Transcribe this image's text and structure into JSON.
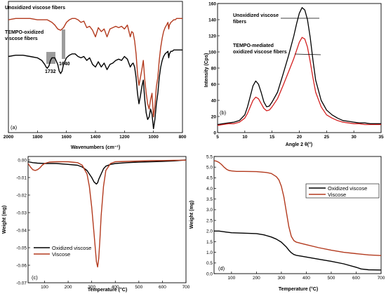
{
  "chart_data": [
    {
      "type": "line",
      "panel": "(a)",
      "xlabel": "Wavenumbers (cm⁻¹)",
      "ylabel": "",
      "xlim": [
        2000,
        800
      ],
      "xticks": [
        2000,
        1800,
        1600,
        1400,
        1200,
        1000,
        800
      ],
      "annotations": [
        "1732",
        "1640"
      ],
      "series": [
        {
          "name": "Unoxidized viscose fibers",
          "color": "#b33a1e",
          "x": [
            2000,
            1950,
            1900,
            1850,
            1800,
            1770,
            1750,
            1732,
            1715,
            1700,
            1680,
            1660,
            1640,
            1620,
            1600,
            1580,
            1560,
            1540,
            1520,
            1500,
            1480,
            1460,
            1440,
            1420,
            1400,
            1380,
            1360,
            1340,
            1320,
            1300,
            1280,
            1260,
            1240,
            1220,
            1200,
            1180,
            1160,
            1150,
            1140,
            1130,
            1120,
            1110,
            1100,
            1090,
            1080,
            1070,
            1060,
            1050,
            1040,
            1030,
            1020,
            1010,
            1000,
            990,
            980,
            970,
            960,
            950,
            940,
            930,
            920,
            910,
            900,
            895,
            890,
            880,
            870,
            860,
            850,
            840,
            820,
            800
          ],
          "y": [
            0.86,
            0.87,
            0.87,
            0.87,
            0.86,
            0.86,
            0.86,
            0.86,
            0.85,
            0.84,
            0.82,
            0.79,
            0.78,
            0.8,
            0.84,
            0.86,
            0.87,
            0.87,
            0.86,
            0.84,
            0.85,
            0.8,
            0.81,
            0.78,
            0.73,
            0.8,
            0.77,
            0.79,
            0.73,
            0.79,
            0.8,
            0.81,
            0.8,
            0.81,
            0.79,
            0.82,
            0.73,
            0.77,
            0.76,
            0.7,
            0.6,
            0.45,
            0.36,
            0.42,
            0.48,
            0.55,
            0.4,
            0.3,
            0.22,
            0.18,
            0.25,
            0.3,
            0.12,
            0.2,
            0.35,
            0.42,
            0.55,
            0.65,
            0.72,
            0.77,
            0.8,
            0.82,
            0.84,
            0.79,
            0.82,
            0.84,
            0.85,
            0.86,
            0.86,
            0.87,
            0.87,
            0.87
          ]
        },
        {
          "name": "TEMPO-oxidized viscose fibers",
          "color": "#000000",
          "x": [
            2000,
            1950,
            1900,
            1850,
            1800,
            1770,
            1750,
            1740,
            1732,
            1720,
            1710,
            1700,
            1680,
            1660,
            1650,
            1640,
            1630,
            1620,
            1600,
            1580,
            1560,
            1540,
            1520,
            1500,
            1480,
            1460,
            1440,
            1420,
            1400,
            1380,
            1360,
            1340,
            1320,
            1300,
            1280,
            1260,
            1240,
            1220,
            1200,
            1180,
            1160,
            1150,
            1140,
            1130,
            1120,
            1110,
            1100,
            1090,
            1080,
            1070,
            1060,
            1050,
            1040,
            1030,
            1020,
            1010,
            1000,
            990,
            980,
            970,
            960,
            950,
            940,
            930,
            920,
            910,
            900,
            895,
            890,
            880,
            870,
            860,
            850,
            840,
            820,
            800
          ],
          "y": [
            0.58,
            0.59,
            0.59,
            0.58,
            0.57,
            0.55,
            0.52,
            0.5,
            0.49,
            0.51,
            0.55,
            0.57,
            0.57,
            0.52,
            0.47,
            0.45,
            0.47,
            0.52,
            0.57,
            0.59,
            0.6,
            0.6,
            0.58,
            0.57,
            0.58,
            0.55,
            0.57,
            0.52,
            0.5,
            0.54,
            0.5,
            0.53,
            0.48,
            0.52,
            0.53,
            0.55,
            0.56,
            0.55,
            0.58,
            0.56,
            0.5,
            0.52,
            0.53,
            0.5,
            0.42,
            0.3,
            0.22,
            0.28,
            0.35,
            0.4,
            0.25,
            0.15,
            0.1,
            0.12,
            0.18,
            0.14,
            0.03,
            0.1,
            0.22,
            0.3,
            0.42,
            0.5,
            0.55,
            0.58,
            0.6,
            0.61,
            0.62,
            0.57,
            0.6,
            0.62,
            0.62,
            0.63,
            0.63,
            0.63,
            0.63,
            0.63
          ]
        }
      ]
    },
    {
      "type": "line",
      "panel": "(b)",
      "xlabel": "Angle 2 θ(°)",
      "ylabel": "Intensity (Cps)",
      "xlim": [
        5,
        35
      ],
      "ylim": [
        0,
        160
      ],
      "xticks": [
        5,
        10,
        15,
        20,
        25,
        30,
        35
      ],
      "yticks": [
        0,
        20,
        40,
        60,
        80,
        100,
        120,
        140,
        160
      ],
      "series": [
        {
          "name": "Unoxidized viscose fibers",
          "color": "#000000",
          "x": [
            5,
            6,
            7,
            8,
            9,
            10,
            10.5,
            11,
            11.5,
            12,
            12.5,
            13,
            13.5,
            14,
            14.5,
            15,
            16,
            17,
            18,
            19,
            19.5,
            20,
            20.5,
            21,
            21.5,
            22,
            22.5,
            23,
            24,
            25,
            26,
            27,
            28,
            29,
            30,
            31,
            32,
            33,
            34,
            35
          ],
          "y": [
            10,
            11,
            12,
            13,
            15,
            22,
            32,
            45,
            58,
            64,
            60,
            50,
            38,
            32,
            33,
            38,
            50,
            72,
            95,
            120,
            135,
            148,
            155,
            152,
            140,
            118,
            90,
            65,
            40,
            28,
            22,
            18,
            15,
            14,
            13,
            12,
            12,
            11,
            11,
            11
          ]
        },
        {
          "name": "TEMPO-mediated oxidized viscose fibers",
          "color": "#d42020",
          "x": [
            5,
            6,
            7,
            8,
            9,
            10,
            10.5,
            11,
            11.5,
            12,
            12.5,
            13,
            13.5,
            14,
            14.5,
            15,
            16,
            17,
            18,
            19,
            19.5,
            20,
            20.5,
            21,
            21.5,
            22,
            22.5,
            23,
            24,
            25,
            26,
            27,
            28,
            29,
            30,
            31,
            32,
            33,
            34,
            35
          ],
          "y": [
            9,
            10,
            11,
            11,
            13,
            18,
            24,
            32,
            40,
            44,
            42,
            36,
            30,
            27,
            28,
            32,
            42,
            58,
            75,
            92,
            102,
            112,
            118,
            116,
            106,
            88,
            68,
            50,
            32,
            22,
            18,
            15,
            13,
            12,
            11,
            11,
            10,
            10,
            10,
            10
          ]
        }
      ]
    },
    {
      "type": "line",
      "panel": "(c)",
      "xlabel": "Temperature (°C)",
      "ylabel": "Weight (mg)",
      "xlim": [
        30,
        700
      ],
      "ylim": [
        -0.07,
        0.002
      ],
      "xticks": [
        100,
        200,
        300,
        400,
        500,
        600,
        700
      ],
      "yticks": [
        0,
        -0.01,
        -0.02,
        -0.03,
        -0.04,
        -0.05,
        -0.06,
        -0.07
      ],
      "ytick_labels": [
        "0.00",
        "-0.01",
        "-0.02",
        "-0.03",
        "-0.04",
        "-0.05",
        "-0.06",
        "-0.07"
      ],
      "legend": "bottom-left",
      "series": [
        {
          "name": "Oxidized viscose",
          "color": "#000000",
          "x": [
            30,
            50,
            70,
            100,
            150,
            200,
            240,
            260,
            280,
            290,
            300,
            310,
            320,
            325,
            330,
            340,
            350,
            360,
            380,
            400,
            450,
            500,
            550,
            600,
            650,
            700
          ],
          "y": [
            -0.001,
            -0.0015,
            -0.0018,
            -0.002,
            -0.002,
            -0.0025,
            -0.003,
            -0.004,
            -0.006,
            -0.008,
            -0.01,
            -0.0125,
            -0.0137,
            -0.013,
            -0.011,
            -0.008,
            -0.005,
            -0.0035,
            -0.0025,
            -0.002,
            -0.0015,
            -0.0012,
            -0.001,
            -0.0008,
            -0.0005,
            0
          ]
        },
        {
          "name": "Viscose",
          "color": "#b33a1e",
          "x": [
            30,
            40,
            50,
            60,
            70,
            80,
            90,
            100,
            120,
            150,
            200,
            240,
            260,
            280,
            290,
            300,
            310,
            315,
            320,
            325,
            330,
            335,
            340,
            350,
            360,
            380,
            400,
            450,
            500,
            550,
            600,
            650,
            700
          ],
          "y": [
            -0.002,
            -0.004,
            -0.0055,
            -0.006,
            -0.0055,
            -0.0045,
            -0.003,
            -0.002,
            -0.0012,
            -0.001,
            -0.001,
            -0.0015,
            -0.003,
            -0.008,
            -0.015,
            -0.027,
            -0.042,
            -0.05,
            -0.058,
            -0.061,
            -0.056,
            -0.045,
            -0.032,
            -0.015,
            -0.006,
            -0.002,
            -0.001,
            -0.0008,
            -0.0006,
            -0.0004,
            -0.0003,
            -0.0002,
            -0.0001
          ]
        }
      ]
    },
    {
      "type": "line",
      "panel": "(d)",
      "xlabel": "Temperature (°C)",
      "ylabel": "Weight (mg)",
      "xlim": [
        30,
        700
      ],
      "ylim": [
        0,
        5.5
      ],
      "xticks": [
        100,
        200,
        300,
        400,
        500,
        600,
        700
      ],
      "yticks": [
        0,
        0.5,
        1.0,
        1.5,
        2.0,
        2.5,
        3.0,
        3.5,
        4.0,
        4.5,
        5.0,
        5.5
      ],
      "ytick_labels": [
        "0.0",
        "0.5",
        "1.0",
        "1.5",
        "2.0",
        "2.5",
        "3.0",
        "3.5",
        "4.0",
        "4.5",
        "5.0",
        "5.5"
      ],
      "legend": "middle-right",
      "series": [
        {
          "name": "Oxidized viscose",
          "color": "#000000",
          "x": [
            30,
            50,
            80,
            100,
            150,
            200,
            230,
            260,
            280,
            300,
            320,
            330,
            340,
            350,
            360,
            380,
            400,
            450,
            500,
            550,
            600,
            620,
            650,
            700
          ],
          "y": [
            2.0,
            2.0,
            1.95,
            1.92,
            1.9,
            1.88,
            1.82,
            1.72,
            1.62,
            1.48,
            1.25,
            1.1,
            0.98,
            0.9,
            0.86,
            0.82,
            0.78,
            0.68,
            0.58,
            0.46,
            0.3,
            0.22,
            0.18,
            0.17
          ]
        },
        {
          "name": "Viscose",
          "color": "#b33a1e",
          "x": [
            30,
            40,
            50,
            60,
            70,
            80,
            90,
            100,
            120,
            150,
            200,
            240,
            260,
            280,
            290,
            300,
            310,
            320,
            330,
            340,
            350,
            360,
            380,
            400,
            450,
            500,
            550,
            600,
            650,
            700
          ],
          "y": [
            5.3,
            5.28,
            5.22,
            5.12,
            5.0,
            4.9,
            4.84,
            4.82,
            4.8,
            4.8,
            4.79,
            4.75,
            4.7,
            4.55,
            4.4,
            4.1,
            3.6,
            2.9,
            2.2,
            1.75,
            1.55,
            1.48,
            1.42,
            1.36,
            1.22,
            1.1,
            1.0,
            0.94,
            0.88,
            0.85
          ]
        }
      ]
    }
  ]
}
